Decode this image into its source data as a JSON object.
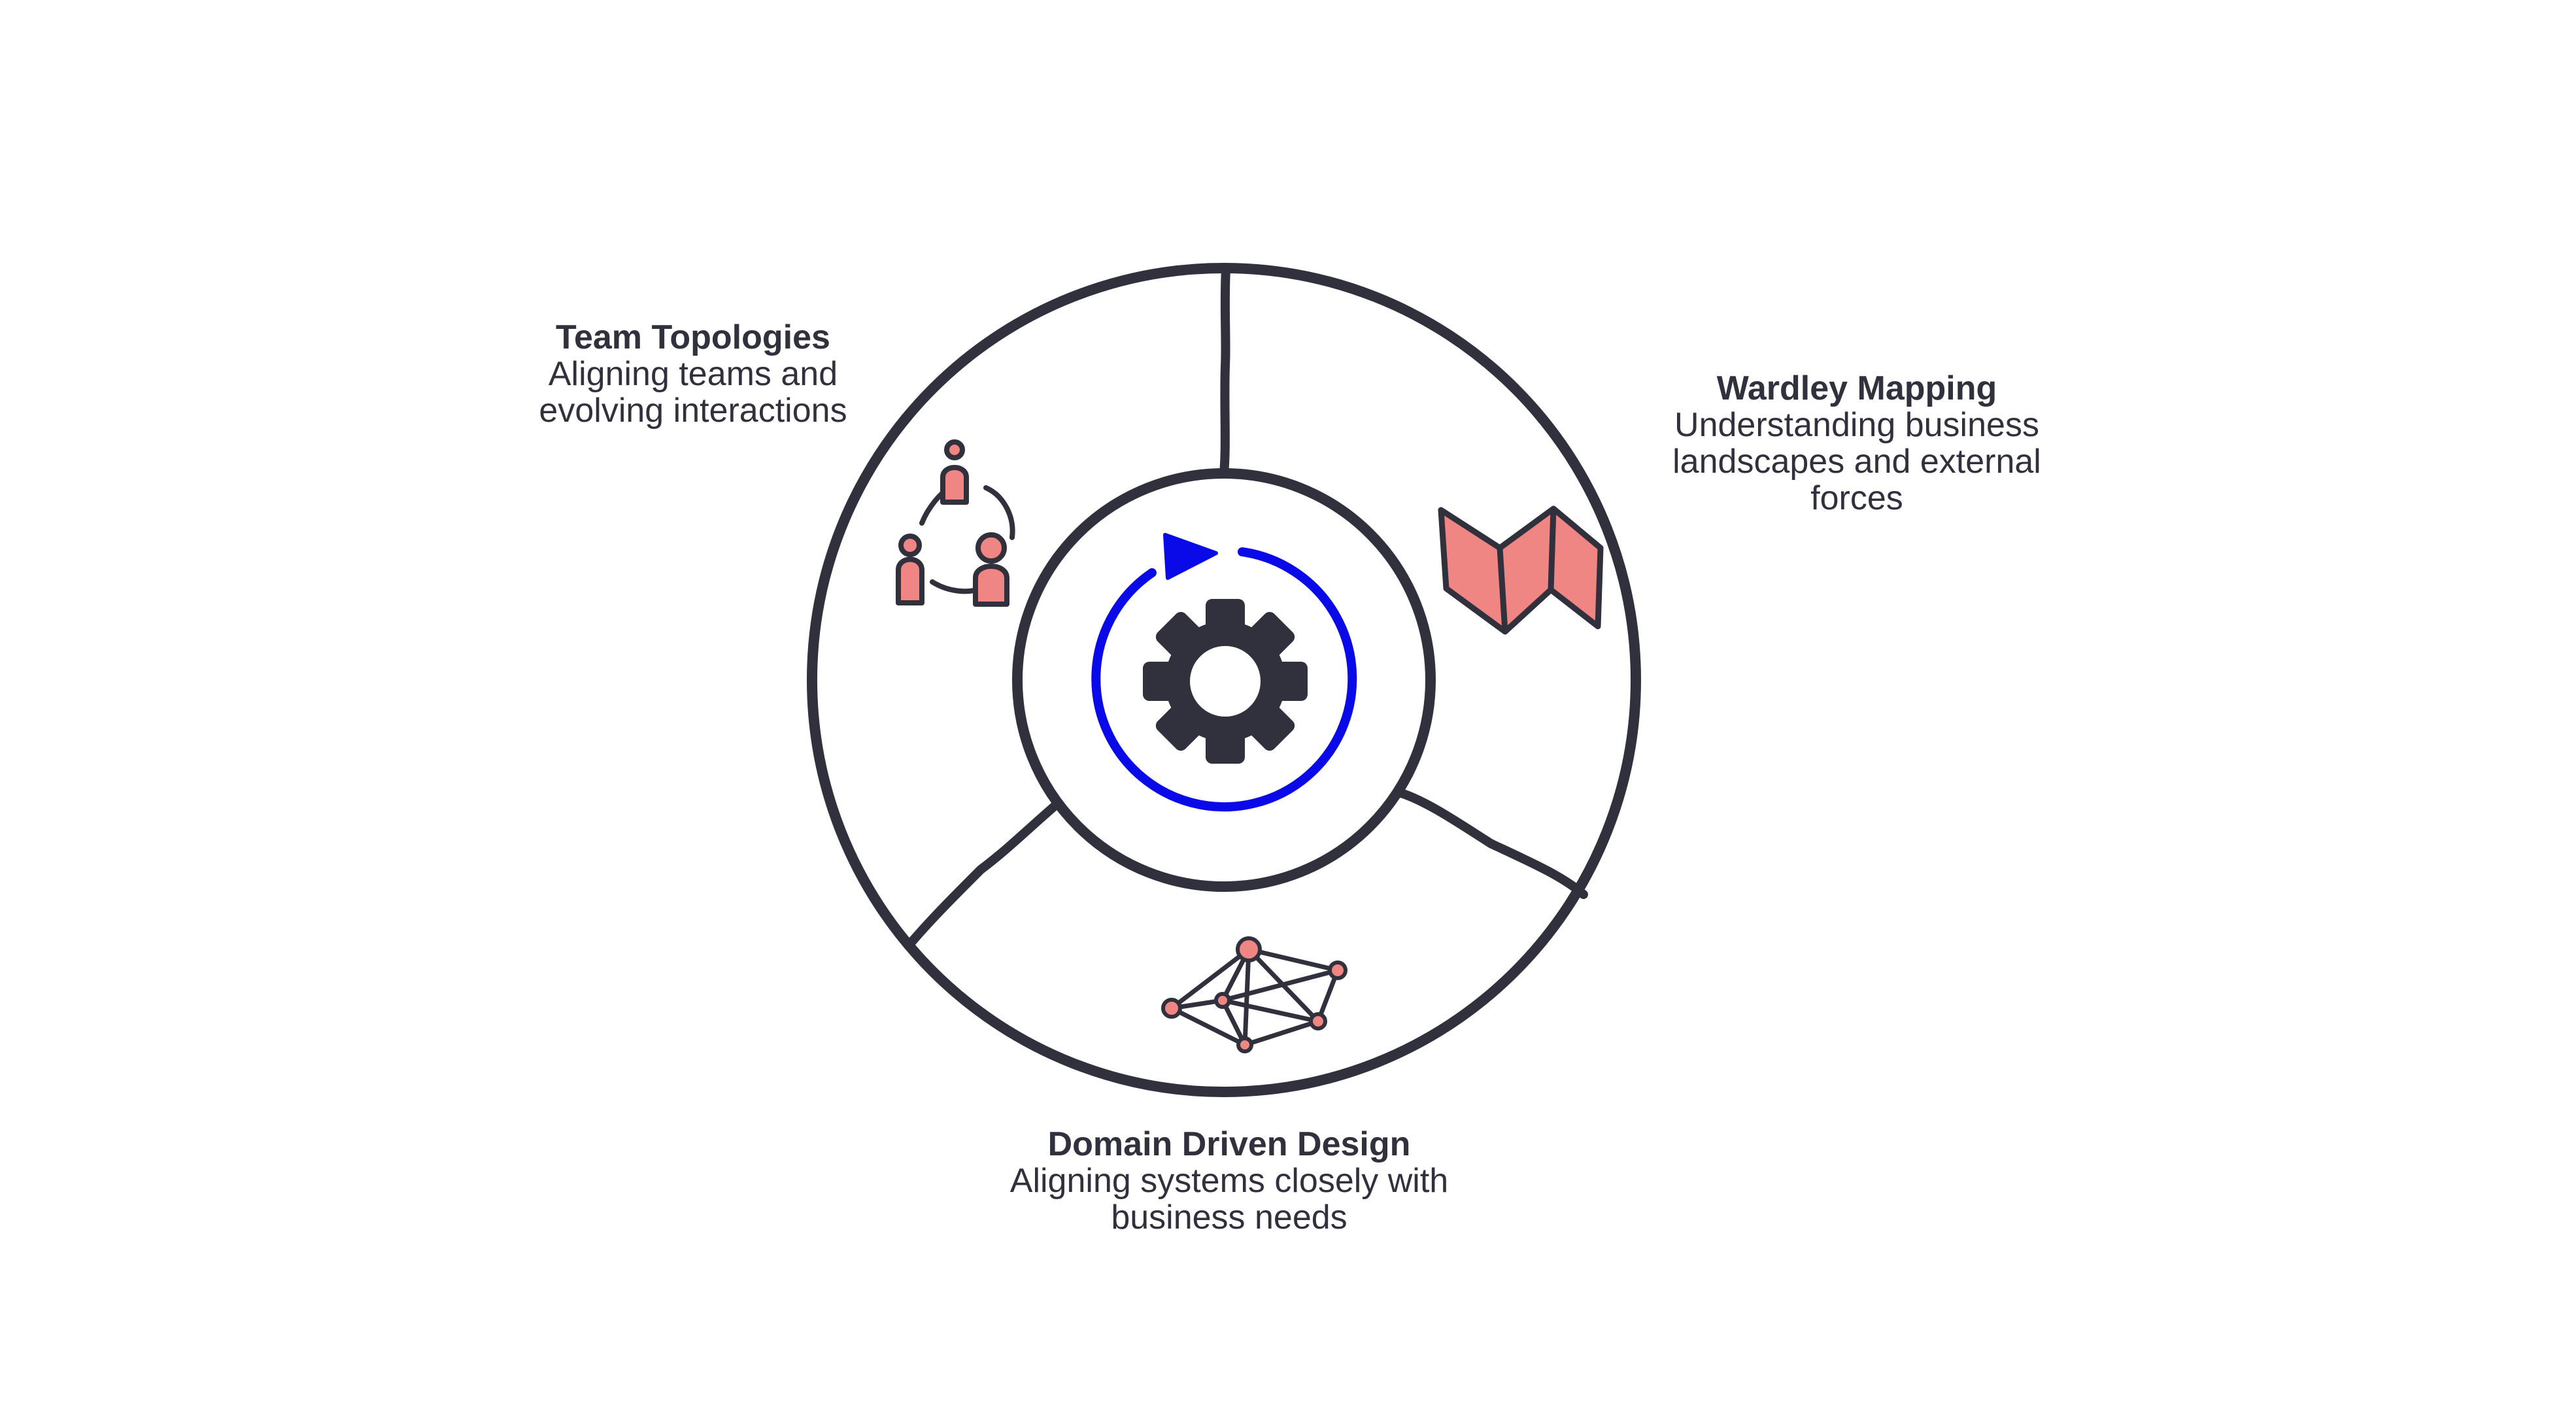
{
  "colors": {
    "stroke": "#31303d",
    "accent_pink": "#f08683",
    "cycle_blue": "#0a0ae8",
    "background": "#ffffff"
  },
  "center": {
    "icon": "gear-icon",
    "cycle_icon": "cycle-arrow-icon"
  },
  "segments": [
    {
      "title": "Team Topologies",
      "description_lines": [
        "Aligning teams and",
        "evolving interactions"
      ],
      "icon": "team-people-icon"
    },
    {
      "title": "Wardley Mapping",
      "description_lines": [
        "Understanding business",
        "landscapes and external",
        "forces"
      ],
      "icon": "folded-map-icon"
    },
    {
      "title": "Domain Driven Design",
      "description_lines": [
        "Aligning systems closely with",
        "business needs"
      ],
      "icon": "network-graph-icon"
    }
  ]
}
